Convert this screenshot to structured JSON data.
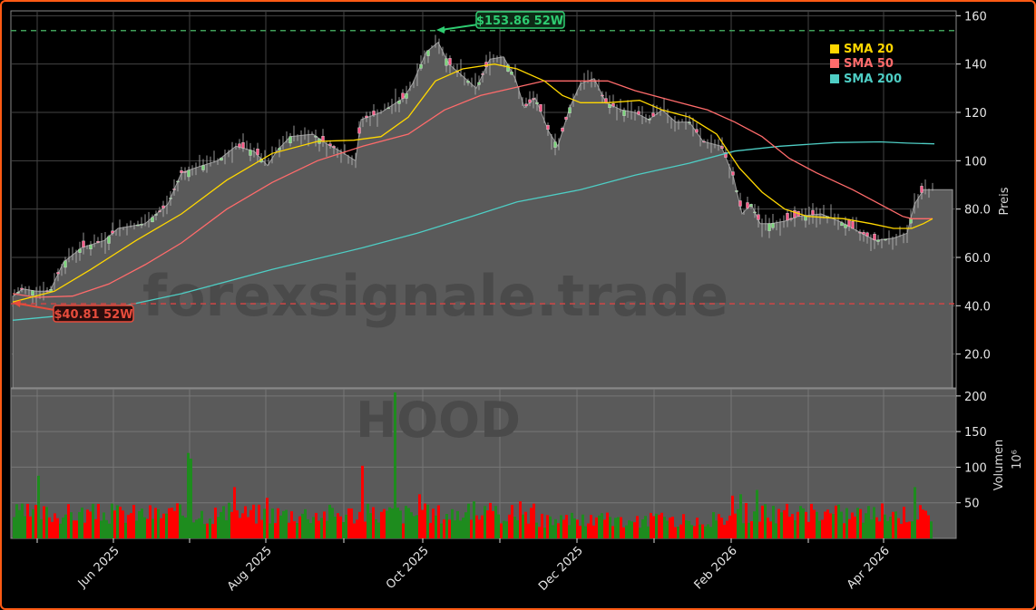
{
  "chart_data": {
    "type": "candlestick",
    "ticker": "HOOD",
    "watermark": "forexsignale.trade",
    "x_tick_labels": [
      "Jun 2025",
      "Aug 2025",
      "Oct 2025",
      "Dec 2025",
      "Feb 2026",
      "Apr 2026"
    ],
    "price_axis": {
      "label": "Preis",
      "ticks": [
        "160",
        "140",
        "120",
        "100",
        "80.0",
        "60.0",
        "40.0",
        "20.0"
      ],
      "tick_values": [
        160,
        140,
        120,
        100,
        80,
        60,
        40,
        20
      ],
      "range": [
        6,
        162
      ]
    },
    "volume_axis": {
      "label": "Volumen",
      "scale_label": "10⁶",
      "ticks": [
        "200",
        "150",
        "100",
        "50"
      ],
      "tick_values": [
        200,
        150,
        100,
        50
      ],
      "range": [
        0,
        210
      ]
    },
    "annotations": {
      "high_52w": {
        "label": "$153.86 52W",
        "value": 153.86,
        "color": "#2ecc71"
      },
      "low_52w": {
        "label": "$40.81 52W",
        "value": 40.81,
        "color": "#e74c3c"
      }
    },
    "legend": [
      {
        "name": "SMA 20",
        "color": "#ffd700"
      },
      {
        "name": "SMA 50",
        "color": "#ff6b6b"
      },
      {
        "name": "SMA 200",
        "color": "#4ecdc4"
      }
    ],
    "close_series_approx": [
      {
        "month": "May 2025",
        "value": 45
      },
      {
        "month": "Jun 2025",
        "value": 72
      },
      {
        "month": "Jul 2025",
        "value": 102
      },
      {
        "month": "Aug 2025",
        "value": 112
      },
      {
        "month": "Sep 2025",
        "value": 117
      },
      {
        "month": "Oct 2025",
        "value": 140
      },
      {
        "month": "Nov 2025",
        "value": 118
      },
      {
        "month": "Dec 2025",
        "value": 128
      },
      {
        "month": "Jan 2026",
        "value": 110
      },
      {
        "month": "Feb 2026",
        "value": 76
      },
      {
        "month": "Mar 2026",
        "value": 72
      },
      {
        "month": "Apr 2026",
        "value": 88
      }
    ],
    "sma_200_end": 107,
    "sma_50_end": 76,
    "sma_20_end": 76,
    "volume_peak": {
      "value": 205,
      "color": "green",
      "approx_date": "Sep 2025"
    },
    "grid": true
  }
}
